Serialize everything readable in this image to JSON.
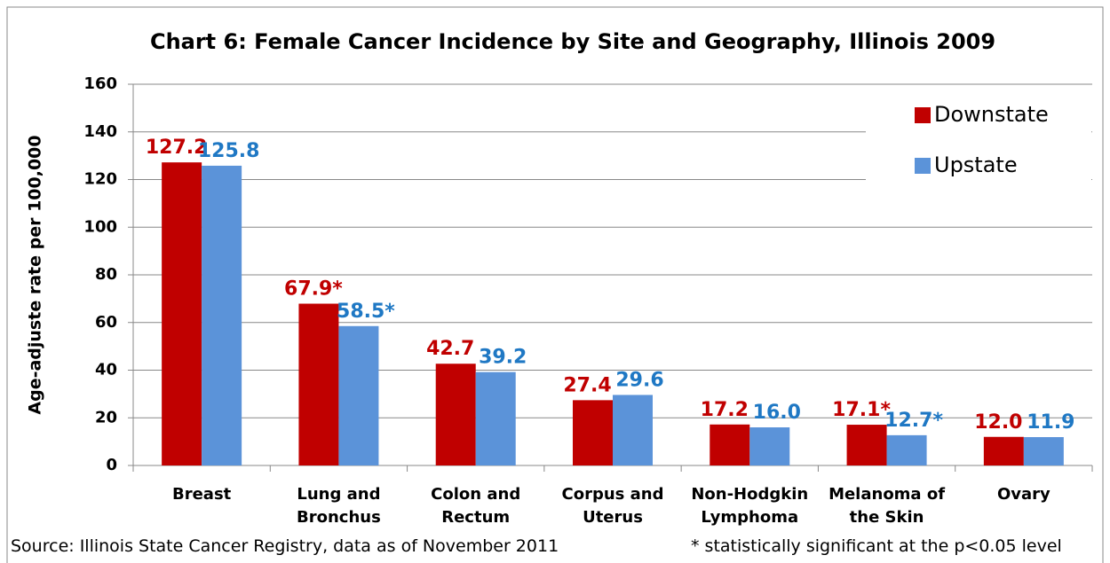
{
  "chart_data": {
    "type": "bar",
    "title": "Chart 6: Female Cancer Incidence by Site and Geography, Illinois 2009",
    "y_label": "Age-adjuste rate per 100,000",
    "categories": [
      "Breast",
      "Lung and Bronchus",
      "Colon and Rectum",
      "Corpus and Uterus",
      "Non-Hodgkin Lymphoma",
      "Melanoma of the Skin",
      "Ovary"
    ],
    "series": [
      {
        "name": "Downstate",
        "color": "#c00000",
        "label_color": "#c00000",
        "values": [
          127.2,
          67.9,
          42.7,
          27.4,
          17.2,
          17.1,
          12.0
        ],
        "value_labels": [
          "127.2",
          "67.9*",
          "42.7",
          "27.4",
          "17.2",
          "17.1*",
          "12.0"
        ]
      },
      {
        "name": "Upstate",
        "color": "#5b93d9",
        "label_color": "#1f78c4",
        "values": [
          125.8,
          58.5,
          39.2,
          29.6,
          16.0,
          12.7,
          11.9
        ],
        "value_labels": [
          "125.8",
          "58.5*",
          "39.2",
          "29.6",
          "16.0",
          "12.7*",
          "11.9"
        ]
      }
    ],
    "ylim": [
      0,
      160
    ],
    "yticks": [
      0,
      20,
      40,
      60,
      80,
      100,
      120,
      140,
      160
    ],
    "grid": true,
    "legend": "upper right",
    "source": "Source: Illinois State Cancer Registry, data as of November 2011",
    "note": "* statistically significant at the p<0.05 level"
  }
}
